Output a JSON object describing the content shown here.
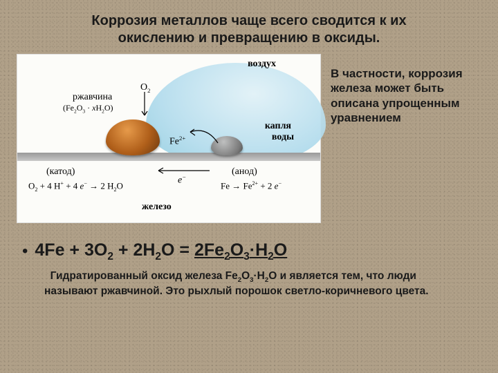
{
  "title_line1": "Коррозия металлов чаще всего сводится к их",
  "title_line2": "окислению и превращению в оксиды.",
  "side_text": "В частности, коррозия железа может быть описана упрощенным уравнением",
  "equation_html": "4Fe + 3O<span class='sub'>2</span> + 2H<span class='sub'>2</span>O = <span class='underline'>2Fe<span class='sub'>2</span>O<span class='sub'>3</span>·H<span class='sub'>2</span>O</span>",
  "description_html": "&nbsp;&nbsp;Гидратированный оксид железа Fe<span class='sub'>2</span>O<span class='sub'>3</span>·H<span class='sub'>2</span>O и является тем, что люди называют ржавчиной. Это рыхлый порошок светло-коричневого цвета.",
  "diagram": {
    "air": "воздух",
    "o2_html": "O<span class='sub'>2</span>",
    "rust1": "ржавчина",
    "rust2_html": "(Fe<span class='sub'>2</span>O<span class='sub'>3</span> · <i>x</i>H<span class='sub'>2</span>O)",
    "drop1": "капля",
    "drop2": "воды",
    "fe2_html": "Fe<span class='sup'>2+</span>",
    "cathode": "(катод)",
    "anode": "(анод)",
    "cathode_eq_html": "O<span class='sub'>2</span> + 4 H<span class='sup'>+</span> + 4 <i>e</i><span class='sup'>−</span> → 2 H<span class='sub'>2</span>O",
    "anode_eq_html": "Fe → Fe<span class='sup'>2+</span> + 2 <i>e</i><span class='sup'>−</span>",
    "e_minus_html": "<i>e</i><span class='sup'>−</span>",
    "iron_label": "железо"
  },
  "colors": {
    "background": "#b0a088",
    "panel": "#fcfcf9",
    "water_light": "#e0f1f7",
    "water_dark": "#8fccdf",
    "rust_light": "#e69a4a",
    "rust_dark": "#6a370d",
    "iron_light": "#bfc0c0",
    "iron_dark": "#494949",
    "surface": "#999999"
  }
}
